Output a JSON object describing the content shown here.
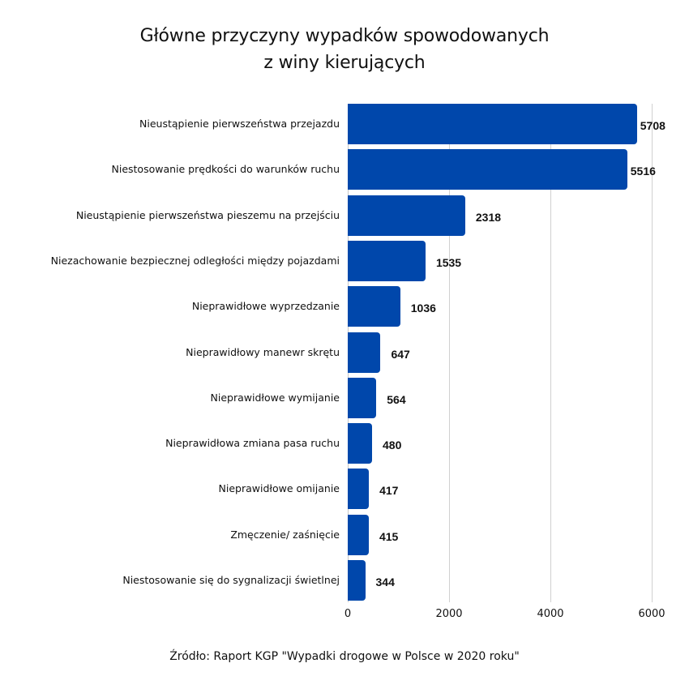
{
  "title": {
    "line1": "Główne przyczyny wypadków spowodowanych",
    "line2": "z winy kierujących"
  },
  "source": "Źródło: Raport KGP \"Wypadki drogowe w Polsce w 2020 roku\"",
  "colors": {
    "bar": "#0047AB",
    "grid": "#d0d0d0",
    "text": "#111111"
  },
  "axis": {
    "ticks": [
      "0",
      "2000",
      "4000",
      "6000"
    ]
  },
  "rows": [
    {
      "label": "Nieustąpienie pierwszeństwa przejazdu",
      "value": "5708"
    },
    {
      "label": "Niestosowanie prędkości do warunków ruchu",
      "value": "5516"
    },
    {
      "label": "Nieustąpienie pierwszeństwa pieszemu na przejściu",
      "value": "2318"
    },
    {
      "label": "Niezachowanie bezpiecznej odległości między pojazdami",
      "value": "1535"
    },
    {
      "label": "Nieprawidłowe wyprzedzanie",
      "value": "1036"
    },
    {
      "label": "Nieprawidłowy manewr skrętu",
      "value": "647"
    },
    {
      "label": "Nieprawidłowe wymijanie",
      "value": "564"
    },
    {
      "label": "Nieprawidłowa zmiana pasa ruchu",
      "value": "480"
    },
    {
      "label": "Nieprawidłowe omijanie",
      "value": "417"
    },
    {
      "label": "Zmęczenie/ zaśnięcie",
      "value": "415"
    },
    {
      "label": "Niestosowanie się do sygnalizacji świetlnej",
      "value": "344"
    }
  ],
  "chart_data": {
    "type": "bar",
    "orientation": "horizontal",
    "title": "Główne przyczyny wypadków spowodowanych z winy kierujących",
    "categories": [
      "Nieustąpienie pierwszeństwa przejazdu",
      "Niestosowanie prędkości do warunków ruchu",
      "Nieustąpienie pierwszeństwa pieszemu na przejściu",
      "Niezachowanie bezpiecznej odległości między pojazdami",
      "Nieprawidłowe wyprzedzanie",
      "Nieprawidłowy manewr skrętu",
      "Nieprawidłowe wymijanie",
      "Nieprawidłowa zmiana pasa ruchu",
      "Nieprawidłowe omijanie",
      "Zmęczenie/ zaśnięcie",
      "Niestosowanie się do sygnalizacji świetlnej"
    ],
    "values": [
      5708,
      5516,
      2318,
      1535,
      1036,
      647,
      564,
      480,
      417,
      415,
      344
    ],
    "xlabel": "",
    "ylabel": "",
    "xlim": [
      0,
      6000
    ],
    "xticks": [
      0,
      2000,
      4000,
      6000
    ],
    "grid": true,
    "data_labels": true,
    "legend": null,
    "source": "Źródło: Raport KGP \"Wypadki drogowe w Polsce w 2020 roku\""
  }
}
